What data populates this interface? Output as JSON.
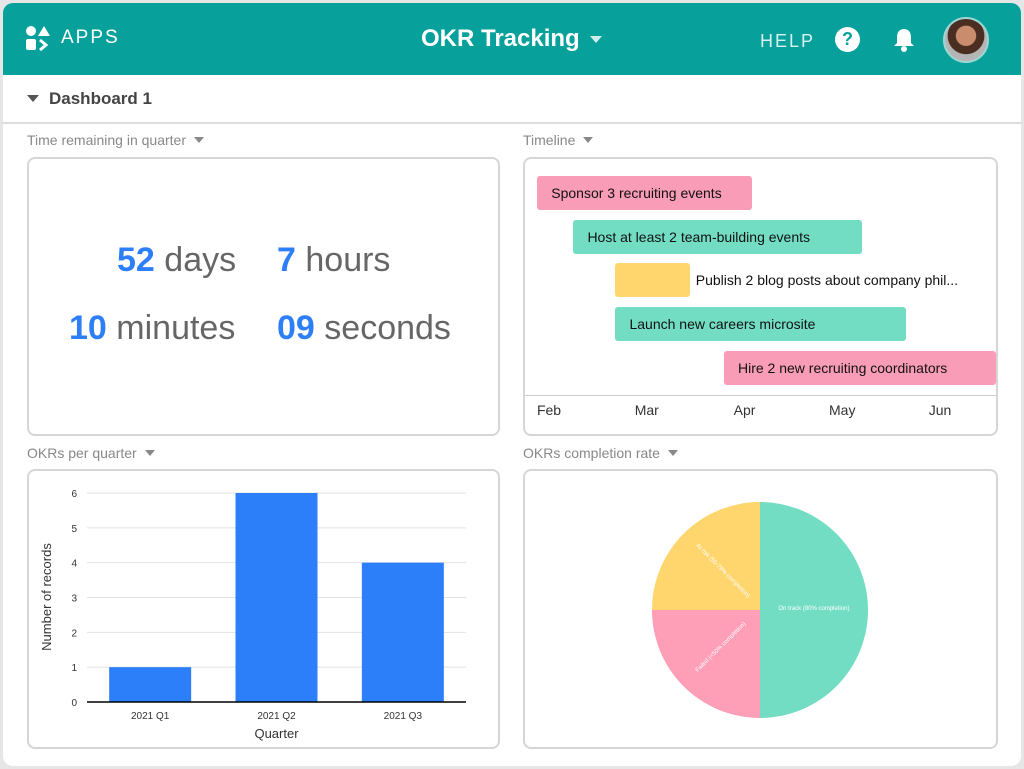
{
  "header": {
    "apps_label": "APPS",
    "title": "OKR Tracking",
    "help_label": "HELP",
    "help_icon": "?"
  },
  "dashboard": {
    "name": "Dashboard 1"
  },
  "countdown": {
    "label": "Time remaining in quarter",
    "days": "52",
    "days_unit": "days",
    "hours": "7",
    "hours_unit": "hours",
    "minutes": "10",
    "minutes_unit": "minutes",
    "seconds": "09",
    "seconds_unit": "seconds"
  },
  "timeline": {
    "label": "Timeline",
    "months": [
      "Feb",
      "Mar",
      "Apr",
      "May",
      "Jun"
    ],
    "items": [
      {
        "name": "Sponsor 3 recruiting events",
        "start": 1.88,
        "end": 4.08,
        "color": "#f99cb8"
      },
      {
        "name": "Host at least 2 team-building events",
        "start": 2.25,
        "end": 5.2,
        "color": "#72ddc3"
      },
      {
        "name": "Publish 2 blog posts about company phil...",
        "start": 2.68,
        "end": 3.44,
        "color": "#ffd66e"
      },
      {
        "name": "Launch new careers microsite",
        "start": 2.68,
        "end": 5.65,
        "color": "#72ddc3"
      },
      {
        "name": "Hire 2 new recruiting coordinators",
        "start": 3.79,
        "end": 6.57,
        "color": "#f99cb8"
      }
    ]
  },
  "chart_data": [
    {
      "type": "bar",
      "title": "OKRs per quarter",
      "categories": [
        "2021 Q1",
        "2021 Q2",
        "2021 Q3"
      ],
      "values": [
        1,
        6,
        4
      ],
      "xlabel": "Quarter",
      "ylabel": "Number of records",
      "ylim": [
        0,
        6
      ],
      "yticks": [
        "0",
        "1",
        "2",
        "3",
        "4",
        "5",
        "6"
      ],
      "color": "#2d7ff9",
      "grid": true
    },
    {
      "type": "pie",
      "title": "OKRs completion rate",
      "slices": [
        {
          "label": "On track (80% completion)",
          "value": 50,
          "color": "#72ddc3"
        },
        {
          "label": "Failed (<50% completion)",
          "value": 25,
          "color": "#ff9eb7"
        },
        {
          "label": "At risk (50-79% completion)",
          "value": 25,
          "color": "#ffd66e"
        }
      ]
    }
  ]
}
